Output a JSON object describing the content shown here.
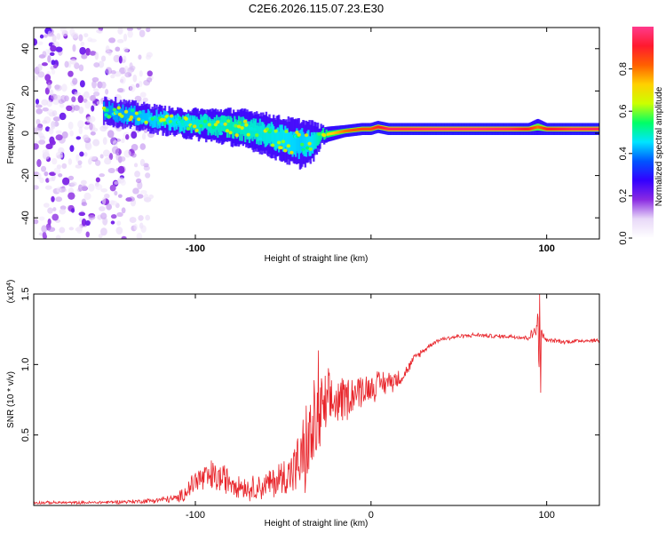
{
  "title": "C2E6.2026.115.07.23.E30",
  "chart_data": [
    {
      "type": "heatmap",
      "xlabel": "Height of straight line (km)",
      "ylabel": "Frequency (Hz)",
      "xlim": [
        -192,
        130
      ],
      "ylim": [
        -50,
        50
      ],
      "x_ticks": [
        -100,
        0,
        100
      ],
      "x_tick_labels": [
        "-100",
        "",
        "100"
      ],
      "y_ticks": [
        -40,
        -20,
        0,
        20,
        40
      ],
      "y_tick_labels": [
        "-40",
        "-20",
        "0",
        "20",
        "40"
      ],
      "colorbar": {
        "label": "Normalized spectral amplitude",
        "range": [
          0,
          1
        ],
        "ticks": [
          0.0,
          0.2,
          0.4,
          0.6,
          0.8
        ],
        "tick_labels": [
          "0.0",
          "0.2",
          "0.4",
          "0.6",
          "0.8"
        ],
        "colormap": [
          "#ffffff",
          "#e8d8f8",
          "#8a2be2",
          "#3300ff",
          "#0055ff",
          "#00e5ff",
          "#00ff66",
          "#ccff00",
          "#ffd000",
          "#ff6000",
          "#ff1a2e",
          "#ff3a8c"
        ]
      },
      "ridge": {
        "x": [
          -152,
          -140,
          -125,
          -110,
          -95,
          -80,
          -65,
          -50,
          -40,
          -33,
          -28,
          -15,
          -5,
          0,
          4,
          10,
          20,
          40,
          60,
          80,
          90,
          95,
          100,
          115,
          130
        ],
        "y": [
          11,
          9,
          7,
          5,
          4,
          3,
          1,
          -3,
          -5,
          -4,
          -1,
          1,
          2,
          2,
          3,
          2,
          2,
          2,
          2,
          2,
          2,
          3,
          2,
          2,
          2
        ],
        "amplitude": [
          0.35,
          0.4,
          0.45,
          0.5,
          0.55,
          0.6,
          0.55,
          0.5,
          0.45,
          0.5,
          0.65,
          0.8,
          0.85,
          0.85,
          0.9,
          0.95,
          0.95,
          0.97,
          0.97,
          0.95,
          0.9,
          0.8,
          0.9,
          0.95,
          0.95
        ],
        "width_hz": [
          5,
          5,
          5,
          5,
          6,
          7,
          8,
          9,
          10,
          8,
          3,
          2,
          2,
          2,
          2,
          2,
          2,
          2,
          2,
          2,
          2,
          3,
          2,
          2,
          2
        ]
      },
      "noise_region": {
        "x_range": [
          -192,
          -125
        ],
        "y_range": [
          -50,
          50
        ]
      }
    },
    {
      "type": "line",
      "xlabel": "Height of straight line (km)",
      "ylabel": "SNR (10 * v/v)",
      "y_multiplier": "(x10",
      "y_multiplier_exp": "4",
      "y_multiplier_close": ")",
      "xlim": [
        -192,
        130
      ],
      "ylim": [
        0,
        1.5
      ],
      "x_ticks": [
        -100,
        0,
        100
      ],
      "x_tick_labels": [
        "-100",
        "0",
        "100"
      ],
      "y_ticks": [
        0.5,
        1.0,
        1.5
      ],
      "y_tick_labels": [
        "0.5",
        "1.0",
        "1.5"
      ],
      "color": "#e8242a",
      "series": [
        {
          "name": "SNR",
          "x": [
            -192,
            -160,
            -130,
            -110,
            -105,
            -100,
            -90,
            -80,
            -70,
            -60,
            -50,
            -42,
            -38,
            -35,
            -32,
            -30,
            -28,
            -25,
            -22,
            -20,
            -15,
            -10,
            -5,
            0,
            5,
            10,
            15,
            18,
            20,
            25,
            30,
            35,
            40,
            50,
            60,
            70,
            80,
            88,
            92,
            95,
            96,
            97,
            98,
            100,
            105,
            110,
            120,
            130
          ],
          "y": [
            0.02,
            0.02,
            0.03,
            0.05,
            0.1,
            0.18,
            0.2,
            0.18,
            0.12,
            0.14,
            0.2,
            0.28,
            0.35,
            0.45,
            0.55,
            0.62,
            0.65,
            0.7,
            0.72,
            0.74,
            0.76,
            0.8,
            0.82,
            0.84,
            0.86,
            0.88,
            0.9,
            0.92,
            0.95,
            1.05,
            1.1,
            1.15,
            1.18,
            1.2,
            1.21,
            1.2,
            1.2,
            1.19,
            1.21,
            1.3,
            0.9,
            1.25,
            1.2,
            1.17,
            1.17,
            1.16,
            1.17,
            1.17
          ],
          "noise_amplitude": [
            0.01,
            0.01,
            0.015,
            0.03,
            0.07,
            0.1,
            0.12,
            0.1,
            0.08,
            0.1,
            0.14,
            0.2,
            0.3,
            0.35,
            0.35,
            0.32,
            0.3,
            0.25,
            0.2,
            0.18,
            0.16,
            0.14,
            0.12,
            0.1,
            0.1,
            0.08,
            0.07,
            0.05,
            0.04,
            0.03,
            0.02,
            0.015,
            0.015,
            0.015,
            0.015,
            0.015,
            0.015,
            0.02,
            0.04,
            0.1,
            0.2,
            0.05,
            0.03,
            0.015,
            0.015,
            0.015,
            0.015,
            0.015
          ]
        }
      ],
      "spikes": [
        {
          "x": -30,
          "y": 1.1
        },
        {
          "x": -26,
          "y": 0.92
        },
        {
          "x": 96,
          "y": 1.5
        },
        {
          "x": 96.6,
          "y": 0.8
        }
      ]
    }
  ]
}
